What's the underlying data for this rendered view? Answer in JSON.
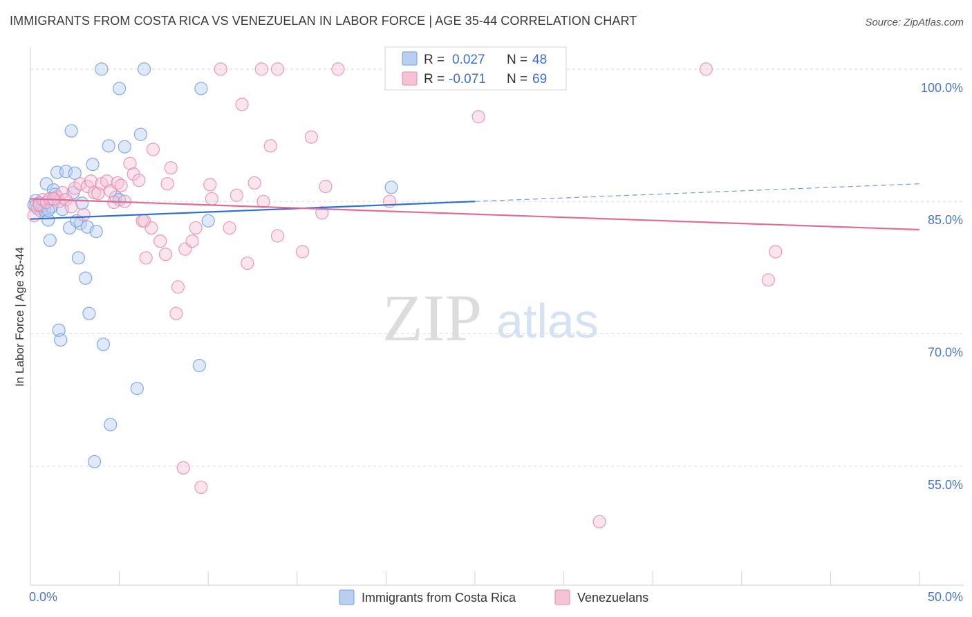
{
  "title": "IMMIGRANTS FROM COSTA RICA VS VENEZUELAN IN LABOR FORCE | AGE 35-44 CORRELATION CHART",
  "source": "Source: ZipAtlas.com",
  "watermark": {
    "zip": "ZIP",
    "atlas": "atlas"
  },
  "chart_data": {
    "type": "scatter",
    "xlabel": "",
    "ylabel": "In Labor Force | Age 35-44",
    "xlim": [
      0,
      50
    ],
    "ylim": [
      41.5,
      102.5
    ],
    "x_tick_labels": [
      {
        "value": 0,
        "label": "0.0%"
      },
      {
        "value": 50,
        "label": "50.0%"
      }
    ],
    "x_minor_ticks": [
      0,
      5,
      10,
      15,
      20,
      25,
      30,
      35,
      40,
      45,
      50
    ],
    "y_ticks": [
      {
        "value": 55,
        "label": "55.0%"
      },
      {
        "value": 70,
        "label": "70.0%"
      },
      {
        "value": 85,
        "label": "85.0%"
      },
      {
        "value": 100,
        "label": "100.0%"
      }
    ],
    "grid": true,
    "legend_position": "top-center",
    "legend": [
      {
        "r_label": "R =",
        "r_value": "0.027",
        "n_label": "N =",
        "n_value": "48"
      },
      {
        "r_label": "R =",
        "r_value": "-0.071",
        "n_label": "N =",
        "n_value": "69"
      }
    ],
    "series": [
      {
        "name": "Immigrants from Costa Rica",
        "color": "#6f9be0",
        "fill": "#b9cff2",
        "trend": {
          "x_start": 0,
          "y_start": 83.0,
          "x_end": 25,
          "y_end": 85.0,
          "x_dash_end": 50,
          "y_dash_end": 87.0
        },
        "points": [
          [
            0.2,
            84.6
          ],
          [
            0.3,
            85.1
          ],
          [
            0.4,
            84.2
          ],
          [
            0.5,
            84.8
          ],
          [
            0.6,
            83.9
          ],
          [
            0.7,
            84.5
          ],
          [
            0.8,
            84.0
          ],
          [
            0.9,
            87.0
          ],
          [
            1.0,
            82.9
          ],
          [
            1.1,
            80.6
          ],
          [
            1.2,
            84.4
          ],
          [
            1.3,
            86.3
          ],
          [
            1.4,
            85.8
          ],
          [
            1.5,
            88.3
          ],
          [
            1.6,
            70.4
          ],
          [
            1.7,
            69.3
          ],
          [
            1.8,
            84.1
          ],
          [
            2.0,
            88.4
          ],
          [
            2.2,
            82.0
          ],
          [
            2.3,
            93.0
          ],
          [
            2.4,
            86.0
          ],
          [
            2.5,
            88.2
          ],
          [
            2.7,
            78.6
          ],
          [
            2.8,
            82.5
          ],
          [
            2.9,
            84.8
          ],
          [
            3.1,
            76.3
          ],
          [
            3.2,
            82.1
          ],
          [
            3.3,
            72.3
          ],
          [
            3.5,
            89.2
          ],
          [
            3.7,
            81.6
          ],
          [
            4.0,
            100.0
          ],
          [
            4.1,
            68.8
          ],
          [
            4.4,
            91.3
          ],
          [
            4.5,
            59.7
          ],
          [
            4.8,
            85.5
          ],
          [
            5.0,
            97.8
          ],
          [
            5.3,
            91.2
          ],
          [
            6.0,
            63.8
          ],
          [
            6.2,
            92.6
          ],
          [
            6.4,
            100.0
          ],
          [
            9.5,
            66.4
          ],
          [
            9.6,
            97.8
          ],
          [
            10.0,
            82.8
          ],
          [
            2.6,
            82.8
          ],
          [
            3.6,
            55.5
          ],
          [
            5.0,
            85.2
          ],
          [
            20.3,
            86.6
          ],
          [
            1.0,
            84.0
          ]
        ]
      },
      {
        "name": "Venezuelans",
        "color": "#e888ab",
        "fill": "#f5c3d6",
        "trend": {
          "x_start": 0,
          "y_start": 85.3,
          "x_end": 50,
          "y_end": 81.8
        },
        "points": [
          [
            0.2,
            83.4
          ],
          [
            0.3,
            84.5
          ],
          [
            0.5,
            84.6
          ],
          [
            0.7,
            85.2
          ],
          [
            0.9,
            84.9
          ],
          [
            1.1,
            85.3
          ],
          [
            1.5,
            85.5
          ],
          [
            1.6,
            85.0
          ],
          [
            1.8,
            86.0
          ],
          [
            2.0,
            85.2
          ],
          [
            2.3,
            84.4
          ],
          [
            2.5,
            86.5
          ],
          [
            2.8,
            87.0
          ],
          [
            3.0,
            83.5
          ],
          [
            3.2,
            86.7
          ],
          [
            3.4,
            87.3
          ],
          [
            3.6,
            86.0
          ],
          [
            3.8,
            85.9
          ],
          [
            4.0,
            87.0
          ],
          [
            4.3,
            87.3
          ],
          [
            4.5,
            86.2
          ],
          [
            4.7,
            84.9
          ],
          [
            4.9,
            87.1
          ],
          [
            5.1,
            86.8
          ],
          [
            5.3,
            85.0
          ],
          [
            5.6,
            89.3
          ],
          [
            5.8,
            88.1
          ],
          [
            6.1,
            87.4
          ],
          [
            6.3,
            82.8
          ],
          [
            6.5,
            78.6
          ],
          [
            6.8,
            82.0
          ],
          [
            6.9,
            90.9
          ],
          [
            7.3,
            80.5
          ],
          [
            7.6,
            79.0
          ],
          [
            7.7,
            87.0
          ],
          [
            7.9,
            88.8
          ],
          [
            8.3,
            75.3
          ],
          [
            8.2,
            72.3
          ],
          [
            8.6,
            54.8
          ],
          [
            8.7,
            79.6
          ],
          [
            9.1,
            80.5
          ],
          [
            9.3,
            82.0
          ],
          [
            9.6,
            52.6
          ],
          [
            10.1,
            86.9
          ],
          [
            10.2,
            85.3
          ],
          [
            10.7,
            100.0
          ],
          [
            11.2,
            82.0
          ],
          [
            11.6,
            85.7
          ],
          [
            11.9,
            96.0
          ],
          [
            12.2,
            78.0
          ],
          [
            12.6,
            87.1
          ],
          [
            13.0,
            100.0
          ],
          [
            13.1,
            85.0
          ],
          [
            13.5,
            91.3
          ],
          [
            13.9,
            81.1
          ],
          [
            13.9,
            100.0
          ],
          [
            15.3,
            79.3
          ],
          [
            15.8,
            92.3
          ],
          [
            16.4,
            83.7
          ],
          [
            16.6,
            86.7
          ],
          [
            17.3,
            100.0
          ],
          [
            20.2,
            85.0
          ],
          [
            25.2,
            94.6
          ],
          [
            32.0,
            48.7
          ],
          [
            38.0,
            100.0
          ],
          [
            41.5,
            76.1
          ],
          [
            41.9,
            79.3
          ],
          [
            1.3,
            85.3
          ],
          [
            6.4,
            82.8
          ]
        ]
      }
    ]
  }
}
